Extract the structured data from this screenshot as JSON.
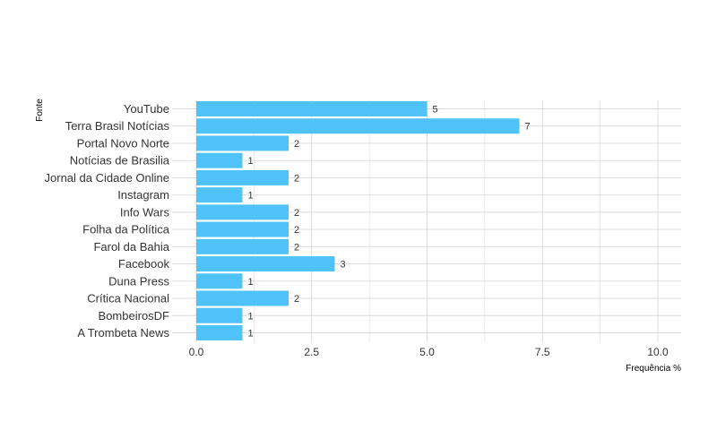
{
  "chart_data": {
    "type": "bar",
    "orientation": "horizontal",
    "categories": [
      "YouTube",
      "Terra Brasil Notícias",
      "Portal Novo Norte",
      "Notícias de Brasilia",
      "Jornal da Cidade Online",
      "Instagram",
      "Info Wars",
      "Folha da Política",
      "Farol da Bahia",
      "Facebook",
      "Duna Press",
      "Crítica Nacional",
      "BombeirosDF",
      "A Trombeta News"
    ],
    "values": [
      5,
      7,
      2,
      1,
      2,
      1,
      2,
      2,
      2,
      3,
      1,
      2,
      1,
      1
    ],
    "data_labels": [
      "5",
      "7",
      "2",
      "1",
      "2",
      "1",
      "2",
      "2",
      "2",
      "3",
      "1",
      "2",
      "1",
      "1"
    ],
    "xlabel": "Frequência %",
    "ylabel": "Fonte",
    "xlim": [
      0,
      10.5
    ],
    "xticks": [
      0,
      2.5,
      5,
      7.5,
      10
    ],
    "xtick_labels": [
      "0.0",
      "2.5",
      "5.0",
      "7.5",
      "10.0"
    ],
    "grid": true,
    "legend": "none",
    "bar_color": "#4FC3F7",
    "grid_color": "#d9d9d9"
  }
}
